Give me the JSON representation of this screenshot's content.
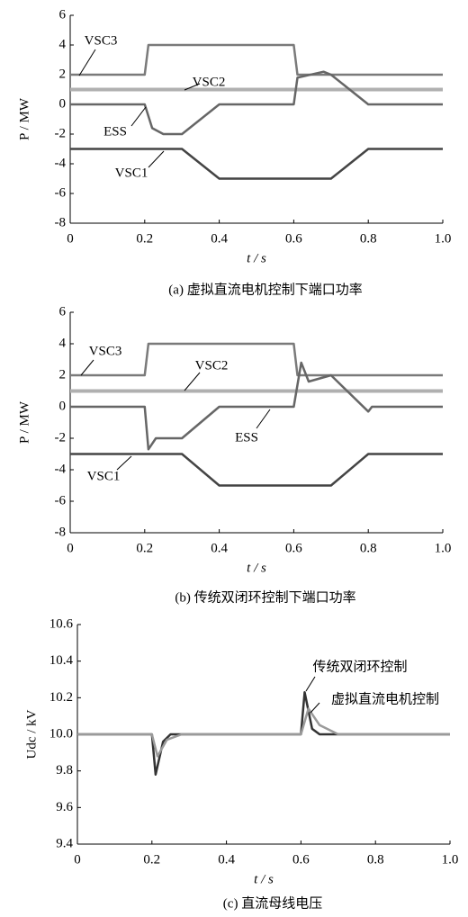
{
  "chart_data": [
    {
      "type": "line",
      "caption": "(a)  虚拟直流电机控制下端口功率",
      "xlabel": "t / s",
      "ylabel": "P / MW",
      "xlim": [
        0,
        1
      ],
      "xticks": [
        0,
        0.2,
        0.4,
        0.6,
        0.8,
        {
          "value": 1,
          "label": "1.0"
        }
      ],
      "ylim": [
        -8,
        6
      ],
      "yticks": [
        -8,
        -6,
        -4,
        -2,
        0,
        2,
        4,
        6
      ],
      "series": [
        {
          "name": "VSC3",
          "color": "#7a7a7a",
          "x": [
            0,
            0.2,
            0.21,
            0.6,
            0.61,
            1
          ],
          "values": [
            2,
            2,
            4,
            4,
            2,
            2
          ]
        },
        {
          "name": "VSC2",
          "color": "#b0b0b0",
          "x": [
            0,
            1
          ],
          "values": [
            1,
            1
          ]
        },
        {
          "name": "ESS",
          "color": "#666666",
          "x": [
            0,
            0.2,
            0.22,
            0.25,
            0.3,
            0.4,
            0.6,
            0.61,
            0.68,
            0.7,
            0.8,
            1
          ],
          "values": [
            0,
            0,
            -1.6,
            -2,
            -2,
            0,
            0,
            1.8,
            2.2,
            2,
            0,
            0
          ]
        },
        {
          "name": "VSC1",
          "color": "#444444",
          "x": [
            0,
            0.3,
            0.4,
            0.7,
            0.8,
            1
          ],
          "values": [
            -3,
            -3,
            -5,
            -5,
            -3,
            -3
          ]
        }
      ]
    },
    {
      "type": "line",
      "caption": "(b)  传统双闭环控制下端口功率",
      "xlabel": "t / s",
      "ylabel": "P / MW",
      "xlim": [
        0,
        1
      ],
      "xticks": [
        0,
        0.2,
        0.4,
        0.6,
        0.8,
        {
          "value": 1,
          "label": "1.0"
        }
      ],
      "ylim": [
        -8,
        6
      ],
      "yticks": [
        -8,
        -6,
        -4,
        -2,
        0,
        2,
        4,
        6
      ],
      "series": [
        {
          "name": "VSC3",
          "color": "#7a7a7a",
          "x": [
            0,
            0.2,
            0.21,
            0.6,
            0.61,
            1
          ],
          "values": [
            2,
            2,
            4,
            4,
            2,
            2
          ]
        },
        {
          "name": "VSC2",
          "color": "#b0b0b0",
          "x": [
            0,
            1
          ],
          "values": [
            1,
            1
          ]
        },
        {
          "name": "ESS",
          "color": "#666666",
          "x": [
            0,
            0.2,
            0.21,
            0.23,
            0.3,
            0.4,
            0.6,
            0.62,
            0.64,
            0.7,
            0.8,
            0.81,
            1
          ],
          "values": [
            0,
            0,
            -2.7,
            -2,
            -2,
            0,
            0,
            2.8,
            1.6,
            2,
            -0.3,
            0,
            0
          ]
        },
        {
          "name": "VSC1",
          "color": "#444444",
          "x": [
            0,
            0.3,
            0.4,
            0.7,
            0.8,
            1
          ],
          "values": [
            -3,
            -3,
            -5,
            -5,
            -3,
            -3
          ]
        }
      ]
    },
    {
      "type": "line",
      "caption": "(c)  直流母线电压",
      "xlabel": "t / s",
      "ylabel": "Udc / kV",
      "xlim": [
        0,
        1
      ],
      "xticks": [
        0,
        0.2,
        0.4,
        0.6,
        0.8,
        {
          "value": 1,
          "label": "1.0"
        }
      ],
      "ylim": [
        9.4,
        10.6
      ],
      "yticks": [
        9.4,
        9.6,
        9.8,
        {
          "value": 10,
          "label": "10.0"
        },
        10.2,
        10.4,
        10.6
      ],
      "series": [
        {
          "name": "传统双闭环控制",
          "color": "#333333",
          "x": [
            0,
            0.2,
            0.21,
            0.23,
            0.25,
            0.6,
            0.61,
            0.63,
            0.65,
            1
          ],
          "values": [
            10,
            10,
            9.78,
            9.96,
            10,
            10,
            10.23,
            10.03,
            10,
            10
          ]
        },
        {
          "name": "虚拟直流电机控制",
          "color": "#9a9a9a",
          "x": [
            0,
            0.2,
            0.215,
            0.24,
            0.28,
            0.6,
            0.62,
            0.65,
            0.7,
            1
          ],
          "values": [
            10,
            10,
            9.88,
            9.97,
            10,
            10,
            10.14,
            10.05,
            10,
            10
          ]
        }
      ]
    }
  ]
}
